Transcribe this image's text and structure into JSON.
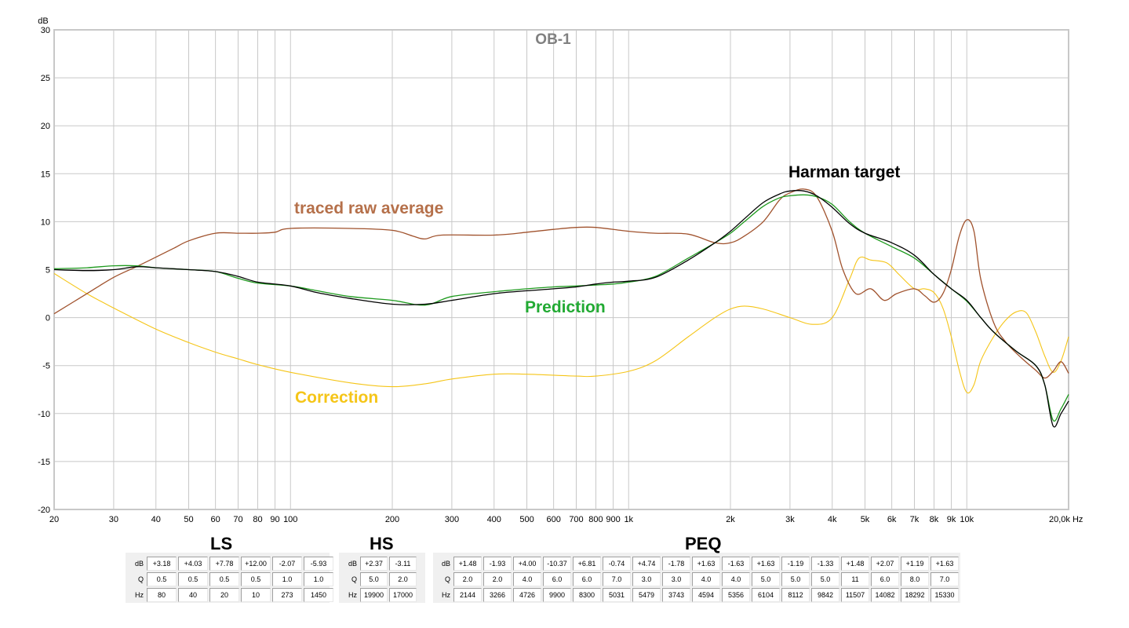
{
  "chart_data": {
    "type": "line",
    "title": "OB-1",
    "ylabel": "dB",
    "xunit": "Hz",
    "xscale": "log",
    "xlim": [
      20,
      20000
    ],
    "ylim": [
      -20,
      30
    ],
    "grid": true,
    "yticks": [
      30,
      25,
      20,
      15,
      10,
      5,
      0,
      -5,
      -10,
      -15,
      -20
    ],
    "xticks": [
      {
        "v": 20,
        "label": "20"
      },
      {
        "v": 30,
        "label": "30"
      },
      {
        "v": 40,
        "label": "40"
      },
      {
        "v": 50,
        "label": "50"
      },
      {
        "v": 60,
        "label": "60"
      },
      {
        "v": 70,
        "label": "70"
      },
      {
        "v": 80,
        "label": "80"
      },
      {
        "v": 90,
        "label": "90"
      },
      {
        "v": 100,
        "label": "100"
      },
      {
        "v": 200,
        "label": "200"
      },
      {
        "v": 300,
        "label": "300"
      },
      {
        "v": 400,
        "label": "400"
      },
      {
        "v": 500,
        "label": "500"
      },
      {
        "v": 600,
        "label": "600"
      },
      {
        "v": 700,
        "label": "700"
      },
      {
        "v": 800,
        "label": "800"
      },
      {
        "v": 900,
        "label": "900"
      },
      {
        "v": 1000,
        "label": "1k"
      },
      {
        "v": 2000,
        "label": "2k"
      },
      {
        "v": 3000,
        "label": "3k"
      },
      {
        "v": 4000,
        "label": "4k"
      },
      {
        "v": 5000,
        "label": "5k"
      },
      {
        "v": 6000,
        "label": "6k"
      },
      {
        "v": 7000,
        "label": "7k"
      },
      {
        "v": 8000,
        "label": "8k"
      },
      {
        "v": 9000,
        "label": "9k"
      },
      {
        "v": 10000,
        "label": "10k"
      },
      {
        "v": 20000,
        "label": "20,0k Hz"
      }
    ],
    "series": [
      {
        "name": "traced raw average",
        "color": "#a0522d",
        "label_color": "#b5704a",
        "points": [
          [
            20,
            0.4
          ],
          [
            25,
            2.5
          ],
          [
            30,
            4.2
          ],
          [
            35,
            5.3
          ],
          [
            40,
            6.3
          ],
          [
            45,
            7.2
          ],
          [
            50,
            8.0
          ],
          [
            60,
            8.8
          ],
          [
            70,
            8.8
          ],
          [
            80,
            8.8
          ],
          [
            90,
            8.9
          ],
          [
            100,
            9.3
          ],
          [
            150,
            9.3
          ],
          [
            200,
            9.1
          ],
          [
            230,
            8.5
          ],
          [
            250,
            8.2
          ],
          [
            280,
            8.6
          ],
          [
            400,
            8.6
          ],
          [
            500,
            8.9
          ],
          [
            600,
            9.2
          ],
          [
            700,
            9.4
          ],
          [
            800,
            9.4
          ],
          [
            1000,
            9.0
          ],
          [
            1200,
            8.8
          ],
          [
            1500,
            8.7
          ],
          [
            1800,
            7.8
          ],
          [
            2000,
            7.8
          ],
          [
            2200,
            8.5
          ],
          [
            2500,
            10.0
          ],
          [
            2800,
            12.3
          ],
          [
            3000,
            13.0
          ],
          [
            3300,
            13.4
          ],
          [
            3600,
            12.6
          ],
          [
            4000,
            9.0
          ],
          [
            4300,
            5.0
          ],
          [
            4700,
            2.5
          ],
          [
            5200,
            3.0
          ],
          [
            5700,
            1.8
          ],
          [
            6200,
            2.5
          ],
          [
            7000,
            3.0
          ],
          [
            7500,
            2.3
          ],
          [
            8000,
            1.6
          ],
          [
            8500,
            2.5
          ],
          [
            9000,
            5.0
          ],
          [
            9500,
            8.5
          ],
          [
            10000,
            10.2
          ],
          [
            10500,
            9.0
          ],
          [
            11000,
            4.0
          ],
          [
            12000,
            -0.5
          ],
          [
            13000,
            -2.5
          ],
          [
            14500,
            -4.2
          ],
          [
            16000,
            -5.5
          ],
          [
            17000,
            -6.3
          ],
          [
            18000,
            -5.6
          ],
          [
            19000,
            -4.6
          ],
          [
            20000,
            -5.8
          ]
        ]
      },
      {
        "name": "Harman target",
        "color": "#000000",
        "label_color": "#000000",
        "points": [
          [
            20,
            5.0
          ],
          [
            25,
            4.9
          ],
          [
            30,
            5.0
          ],
          [
            35,
            5.3
          ],
          [
            40,
            5.2
          ],
          [
            50,
            5.0
          ],
          [
            60,
            4.8
          ],
          [
            70,
            4.3
          ],
          [
            80,
            3.7
          ],
          [
            100,
            3.3
          ],
          [
            120,
            2.6
          ],
          [
            150,
            2.0
          ],
          [
            200,
            1.4
          ],
          [
            250,
            1.4
          ],
          [
            300,
            1.8
          ],
          [
            400,
            2.5
          ],
          [
            500,
            2.8
          ],
          [
            600,
            3.0
          ],
          [
            700,
            3.2
          ],
          [
            800,
            3.5
          ],
          [
            900,
            3.7
          ],
          [
            1000,
            3.8
          ],
          [
            1200,
            4.2
          ],
          [
            1500,
            6.0
          ],
          [
            1800,
            7.8
          ],
          [
            2000,
            9.0
          ],
          [
            2200,
            10.3
          ],
          [
            2500,
            12.0
          ],
          [
            2800,
            12.9
          ],
          [
            3000,
            13.2
          ],
          [
            3300,
            13.2
          ],
          [
            3600,
            12.7
          ],
          [
            4000,
            11.5
          ],
          [
            4500,
            9.8
          ],
          [
            5000,
            8.8
          ],
          [
            6000,
            7.8
          ],
          [
            7000,
            6.5
          ],
          [
            8000,
            4.5
          ],
          [
            9000,
            3.0
          ],
          [
            10000,
            1.8
          ],
          [
            11000,
            0.0
          ],
          [
            12000,
            -1.5
          ],
          [
            14000,
            -3.5
          ],
          [
            16000,
            -5.0
          ],
          [
            17000,
            -7.0
          ],
          [
            18000,
            -11.3
          ],
          [
            19000,
            -10.0
          ],
          [
            20000,
            -8.7
          ]
        ]
      },
      {
        "name": "Prediction",
        "color": "#1e9a1e",
        "label_color": "#22aa33",
        "points": [
          [
            20,
            5.1
          ],
          [
            25,
            5.2
          ],
          [
            30,
            5.4
          ],
          [
            35,
            5.4
          ],
          [
            40,
            5.2
          ],
          [
            50,
            5.0
          ],
          [
            60,
            4.8
          ],
          [
            70,
            4.1
          ],
          [
            80,
            3.6
          ],
          [
            100,
            3.3
          ],
          [
            120,
            2.8
          ],
          [
            150,
            2.2
          ],
          [
            200,
            1.8
          ],
          [
            250,
            1.3
          ],
          [
            300,
            2.2
          ],
          [
            400,
            2.7
          ],
          [
            500,
            3.0
          ],
          [
            600,
            3.2
          ],
          [
            700,
            3.3
          ],
          [
            800,
            3.4
          ],
          [
            900,
            3.5
          ],
          [
            1000,
            3.7
          ],
          [
            1200,
            4.3
          ],
          [
            1500,
            6.2
          ],
          [
            1800,
            7.8
          ],
          [
            2000,
            8.8
          ],
          [
            2200,
            10.0
          ],
          [
            2500,
            11.6
          ],
          [
            2800,
            12.5
          ],
          [
            3000,
            12.7
          ],
          [
            3300,
            12.8
          ],
          [
            3600,
            12.6
          ],
          [
            4000,
            11.8
          ],
          [
            4500,
            10.0
          ],
          [
            5000,
            8.8
          ],
          [
            6000,
            7.4
          ],
          [
            7000,
            6.2
          ],
          [
            8000,
            4.5
          ],
          [
            9000,
            3.0
          ],
          [
            10000,
            1.7
          ],
          [
            11000,
            0.0
          ],
          [
            12000,
            -1.5
          ],
          [
            14000,
            -3.5
          ],
          [
            16000,
            -5.0
          ],
          [
            17000,
            -7.0
          ],
          [
            18000,
            -10.7
          ],
          [
            19000,
            -9.5
          ],
          [
            20000,
            -8.0
          ]
        ]
      },
      {
        "name": "Correction",
        "color": "#f5c518",
        "label_color": "#f5c518",
        "points": [
          [
            20,
            4.6
          ],
          [
            25,
            2.5
          ],
          [
            30,
            1.0
          ],
          [
            40,
            -1.2
          ],
          [
            50,
            -2.6
          ],
          [
            60,
            -3.6
          ],
          [
            70,
            -4.3
          ],
          [
            80,
            -4.9
          ],
          [
            100,
            -5.7
          ],
          [
            150,
            -6.8
          ],
          [
            200,
            -7.2
          ],
          [
            250,
            -6.9
          ],
          [
            300,
            -6.4
          ],
          [
            400,
            -5.9
          ],
          [
            500,
            -5.9
          ],
          [
            700,
            -6.1
          ],
          [
            800,
            -6.1
          ],
          [
            1000,
            -5.6
          ],
          [
            1200,
            -4.5
          ],
          [
            1500,
            -2.0
          ],
          [
            1800,
            0.0
          ],
          [
            2000,
            0.9
          ],
          [
            2200,
            1.2
          ],
          [
            2500,
            0.9
          ],
          [
            3000,
            0.0
          ],
          [
            3500,
            -0.7
          ],
          [
            4000,
            0.0
          ],
          [
            4500,
            4.0
          ],
          [
            4800,
            6.2
          ],
          [
            5200,
            6.0
          ],
          [
            5800,
            5.7
          ],
          [
            6300,
            4.5
          ],
          [
            7000,
            3.0
          ],
          [
            7500,
            3.0
          ],
          [
            8000,
            2.6
          ],
          [
            8500,
            1.0
          ],
          [
            9000,
            -2.0
          ],
          [
            9500,
            -5.5
          ],
          [
            10000,
            -7.8
          ],
          [
            10500,
            -7.0
          ],
          [
            11000,
            -4.5
          ],
          [
            12000,
            -2.0
          ],
          [
            13000,
            -0.3
          ],
          [
            14000,
            0.6
          ],
          [
            15000,
            0.5
          ],
          [
            16000,
            -1.5
          ],
          [
            17000,
            -4.0
          ],
          [
            18000,
            -5.7
          ],
          [
            19000,
            -4.5
          ],
          [
            20000,
            -2.0
          ]
        ]
      }
    ]
  },
  "tables": {
    "ls": {
      "title": "LS",
      "row_labels": [
        "dB",
        "Q",
        "Hz"
      ],
      "columns": [
        [
          "+3.18",
          "0.5",
          "80"
        ],
        [
          "+4.03",
          "0.5",
          "40"
        ],
        [
          "+7.78",
          "0.5",
          "20"
        ],
        [
          "+12.00",
          "0.5",
          "10"
        ],
        [
          "-2.07",
          "1.0",
          "273"
        ],
        [
          "-5.93",
          "1.0",
          "1450"
        ]
      ]
    },
    "hs": {
      "title": "HS",
      "row_labels": [
        "dB",
        "Q",
        "Hz"
      ],
      "columns": [
        [
          "+2.37",
          "5.0",
          "19900"
        ],
        [
          "-3.11",
          "2.0",
          "17000"
        ]
      ]
    },
    "peq": {
      "title": "PEQ",
      "row_labels": [
        "dB",
        "Q",
        "Hz"
      ],
      "columns": [
        [
          "+1.48",
          "2.0",
          "2144"
        ],
        [
          "-1.93",
          "2.0",
          "3266"
        ],
        [
          "+4.00",
          "4.0",
          "4726"
        ],
        [
          "-10.37",
          "6.0",
          "9900"
        ],
        [
          "+6.81",
          "6.0",
          "8300"
        ],
        [
          "-0.74",
          "7.0",
          "5031"
        ],
        [
          "+4.74",
          "3.0",
          "5479"
        ],
        [
          "-1.78",
          "3.0",
          "3743"
        ],
        [
          "+1.63",
          "4.0",
          "4594"
        ],
        [
          "-1.63",
          "4.0",
          "5356"
        ],
        [
          "+1.63",
          "5.0",
          "6104"
        ],
        [
          "-1.19",
          "5.0",
          "8112"
        ],
        [
          "-1.33",
          "5.0",
          "9842"
        ],
        [
          "+1.48",
          "11",
          "11507"
        ],
        [
          "+2.07",
          "6.0",
          "14082"
        ],
        [
          "+1.19",
          "8.0",
          "18292"
        ],
        [
          "+1.63",
          "7.0",
          "15330"
        ]
      ]
    }
  }
}
